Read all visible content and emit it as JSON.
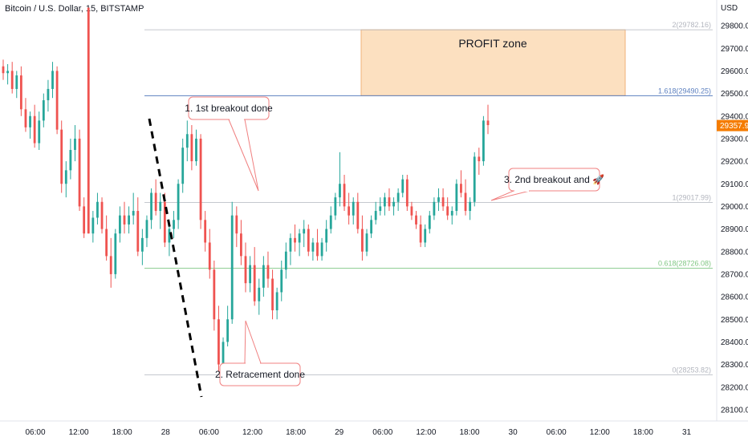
{
  "header": {
    "title": "Bitcoin / U.S. Dollar, 15, BITSTAMP"
  },
  "price_axis": {
    "currency": "USD"
  },
  "chart_data": {
    "type": "candlestick",
    "title": "Bitcoin / U.S. Dollar, 15, BITSTAMP",
    "ylabel": "USD",
    "ylim": [
      28050,
      29850
    ],
    "y_ticks": [
      "29800.00",
      "29700.00",
      "29600.00",
      "29500.00",
      "29400.00",
      "29300.00",
      "29200.00",
      "29100.00",
      "29000.00",
      "28900.00",
      "28800.00",
      "28700.00",
      "28600.00",
      "28500.00",
      "28400.00",
      "28300.00",
      "28200.00",
      "28100.00"
    ],
    "x_ticks": [
      "06:00",
      "12:00",
      "18:00",
      "28",
      "06:00",
      "12:00",
      "18:00",
      "29",
      "06:00",
      "12:00",
      "18:00",
      "30",
      "06:00",
      "12:00",
      "18:00",
      "31"
    ],
    "last_price": "29357.92",
    "colors": {
      "up": "#26a69a",
      "down": "#ef5350",
      "fib_main": "#5b7fbf",
      "fib_0618": "#81c784",
      "fib_gray": "#b2b5be",
      "zone_fill": "#fce0c0",
      "zone_border": "#f0b27a",
      "callout_border": "#f08080",
      "last_price_bg": "#f57c00"
    },
    "fib_levels": [
      {
        "label": "2(29782.16)",
        "value": 29782.16,
        "tone": "gray"
      },
      {
        "label": "1.618(29490.25)",
        "value": 29490.25,
        "tone": "main"
      },
      {
        "label": "1(29017.99)",
        "value": 29017.99,
        "tone": "gray"
      },
      {
        "label": "0.618(28726.08)",
        "value": 28726.08,
        "tone": "green"
      },
      {
        "label": "0(28253.82)",
        "value": 28253.82,
        "tone": "gray"
      }
    ],
    "profit_zone": {
      "label": "PROFIT zone",
      "top": 29782.16,
      "bottom": 29490.25
    },
    "callouts": [
      {
        "label": "1. 1st breakout done"
      },
      {
        "label": "2. Retracement done"
      },
      {
        "label": "3. 2nd breakout and 🚀"
      }
    ],
    "candles": [
      [
        29620,
        29650,
        29560,
        29590
      ],
      [
        29590,
        29630,
        29540,
        29600
      ],
      [
        29600,
        29640,
        29500,
        29520
      ],
      [
        29520,
        29600,
        29480,
        29580
      ],
      [
        29580,
        29620,
        29400,
        29430
      ],
      [
        29430,
        29480,
        29330,
        29350
      ],
      [
        29350,
        29420,
        29300,
        29400
      ],
      [
        29400,
        29450,
        29260,
        29280
      ],
      [
        29280,
        29420,
        29250,
        29380
      ],
      [
        29380,
        29500,
        29350,
        29470
      ],
      [
        29470,
        29560,
        29420,
        29520
      ],
      [
        29520,
        29640,
        29480,
        29600
      ],
      [
        29600,
        29620,
        29320,
        29340
      ],
      [
        29340,
        29380,
        29060,
        29100
      ],
      [
        29100,
        29200,
        29040,
        29160
      ],
      [
        29160,
        29300,
        29120,
        29250
      ],
      [
        29250,
        29360,
        29200,
        29300
      ],
      [
        29300,
        29340,
        28980,
        29000
      ],
      [
        29000,
        29040,
        28860,
        28880
      ],
      [
        29880,
        29880,
        28880,
        28880
      ],
      [
        28880,
        28980,
        28840,
        28950
      ],
      [
        28950,
        29060,
        28920,
        29020
      ],
      [
        29020,
        29040,
        28880,
        28900
      ],
      [
        28900,
        28960,
        28760,
        28780
      ],
      [
        28780,
        28860,
        28640,
        28700
      ],
      [
        28700,
        28900,
        28680,
        28880
      ],
      [
        28880,
        29000,
        28840,
        28960
      ],
      [
        28960,
        29020,
        28880,
        28920
      ],
      [
        28920,
        29000,
        28880,
        28960
      ],
      [
        28960,
        29060,
        28920,
        28980
      ],
      [
        28980,
        29040,
        28780,
        28800
      ],
      [
        28800,
        28900,
        28740,
        28860
      ],
      [
        28860,
        28960,
        28820,
        28940
      ],
      [
        28940,
        29080,
        28900,
        29060
      ],
      [
        29060,
        29120,
        28960,
        28980
      ],
      [
        28980,
        29060,
        28900,
        29020
      ],
      [
        29020,
        29060,
        28820,
        28840
      ],
      [
        28840,
        28920,
        28780,
        28900
      ],
      [
        28900,
        28980,
        28860,
        28940
      ],
      [
        28940,
        29120,
        28900,
        29100
      ],
      [
        29100,
        29300,
        29060,
        29260
      ],
      [
        29260,
        29380,
        29200,
        29320
      ],
      [
        29320,
        29360,
        29160,
        29200
      ],
      [
        29200,
        29340,
        29180,
        29300
      ],
      [
        29300,
        29320,
        28900,
        28940
      ],
      [
        28940,
        28980,
        28800,
        28840
      ],
      [
        28840,
        28900,
        28680,
        28720
      ],
      [
        28720,
        28760,
        28450,
        28500
      ],
      [
        28500,
        28560,
        28270,
        28300
      ],
      [
        28300,
        28420,
        28260,
        28400
      ],
      [
        28400,
        28560,
        28380,
        28500
      ],
      [
        28500,
        29020,
        28480,
        28960
      ],
      [
        28960,
        29000,
        28820,
        28880
      ],
      [
        28880,
        28940,
        28740,
        28780
      ],
      [
        28780,
        28840,
        28620,
        28660
      ],
      [
        28660,
        28780,
        28620,
        28740
      ],
      [
        28740,
        28820,
        28560,
        28580
      ],
      [
        28580,
        28680,
        28520,
        28640
      ],
      [
        28640,
        28780,
        28600,
        28740
      ],
      [
        28740,
        28800,
        28640,
        28680
      ],
      [
        28680,
        28720,
        28500,
        28540
      ],
      [
        28540,
        28640,
        28500,
        28620
      ],
      [
        28620,
        28760,
        28580,
        28720
      ],
      [
        28720,
        28840,
        28680,
        28800
      ],
      [
        28800,
        28880,
        28740,
        28860
      ],
      [
        28860,
        28920,
        28800,
        28840
      ],
      [
        28840,
        28900,
        28780,
        28880
      ],
      [
        28880,
        28940,
        28820,
        28900
      ],
      [
        28900,
        28920,
        28780,
        28800
      ],
      [
        28800,
        28860,
        28760,
        28840
      ],
      [
        28840,
        28900,
        28760,
        28780
      ],
      [
        28780,
        28860,
        28760,
        28840
      ],
      [
        28840,
        28940,
        28800,
        28900
      ],
      [
        28900,
        29000,
        28880,
        28960
      ],
      [
        28960,
        29060,
        28940,
        29040
      ],
      [
        29040,
        29240,
        29000,
        29100
      ],
      [
        29100,
        29140,
        28980,
        29000
      ],
      [
        29000,
        29060,
        28920,
        28960
      ],
      [
        28960,
        29040,
        28920,
        29020
      ],
      [
        29020,
        29060,
        28880,
        28900
      ],
      [
        28900,
        28960,
        28760,
        28800
      ],
      [
        28800,
        28900,
        28780,
        28880
      ],
      [
        28880,
        28960,
        28860,
        28940
      ],
      [
        28940,
        29020,
        28920,
        28980
      ],
      [
        28980,
        29040,
        28960,
        29000
      ],
      [
        29000,
        29060,
        28960,
        29040
      ],
      [
        29040,
        29080,
        28980,
        29000
      ],
      [
        29000,
        29040,
        28960,
        29020
      ],
      [
        29020,
        29080,
        28980,
        29060
      ],
      [
        29060,
        29140,
        29040,
        29120
      ],
      [
        29120,
        29140,
        28980,
        29000
      ],
      [
        29000,
        29020,
        28940,
        28960
      ],
      [
        28960,
        28980,
        28900,
        28920
      ],
      [
        28920,
        28960,
        28820,
        28840
      ],
      [
        28840,
        28920,
        28820,
        28900
      ],
      [
        28900,
        28980,
        28880,
        28960
      ],
      [
        28960,
        29040,
        28940,
        29020
      ],
      [
        29020,
        29080,
        28980,
        29040
      ],
      [
        29040,
        29080,
        28980,
        29000
      ],
      [
        29000,
        29040,
        28940,
        28960
      ],
      [
        28960,
        29000,
        28920,
        28980
      ],
      [
        28980,
        29120,
        28960,
        29100
      ],
      [
        29100,
        29160,
        29040,
        29060
      ],
      [
        29060,
        29120,
        28960,
        28980
      ],
      [
        28980,
        29040,
        28940,
        29020
      ],
      [
        29020,
        29240,
        29000,
        29220
      ],
      [
        29220,
        29260,
        29140,
        29200
      ],
      [
        29200,
        29400,
        29180,
        29380
      ],
      [
        29380,
        29450,
        29320,
        29360
      ]
    ]
  }
}
